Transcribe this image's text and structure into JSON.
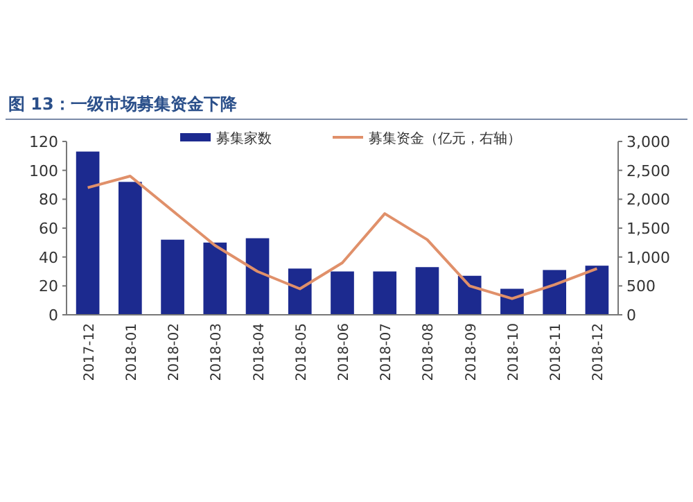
{
  "chart_data": {
    "type": "bar",
    "title": "图 13：一级市场募集资金下降",
    "categories": [
      "2017-12",
      "2018-01",
      "2018-02",
      "2018-03",
      "2018-04",
      "2018-05",
      "2018-06",
      "2018-07",
      "2018-08",
      "2018-09",
      "2018-10",
      "2018-11",
      "2018-12"
    ],
    "series": [
      {
        "name": "募集家数",
        "color": "#1c2a8f",
        "values": [
          113,
          92,
          52,
          50,
          53,
          32,
          30,
          30,
          33,
          27,
          18,
          31,
          34
        ]
      },
      {
        "name": "募集资金（亿元，右轴）",
        "type": "line",
        "axis": "y2",
        "color": "#e0906a",
        "values": [
          2200,
          2400,
          1800,
          1200,
          750,
          450,
          900,
          1750,
          1300,
          500,
          280,
          520,
          800
        ]
      }
    ],
    "ylim": [
      0,
      120
    ],
    "yticks": [
      0,
      20,
      40,
      60,
      80,
      100,
      120
    ],
    "y2lim": [
      0,
      3000
    ],
    "y2ticks": [
      0,
      {
        "value": 500,
        "label": "500"
      },
      {
        "value": 1000,
        "label": "1,000"
      },
      {
        "value": 1500,
        "label": "1,500"
      },
      {
        "value": 2000,
        "label": "2,000"
      },
      {
        "value": 2500,
        "label": "2,500"
      },
      {
        "value": 3000,
        "label": "3,000"
      }
    ],
    "legend": "top",
    "grid": false,
    "marker": "none"
  }
}
